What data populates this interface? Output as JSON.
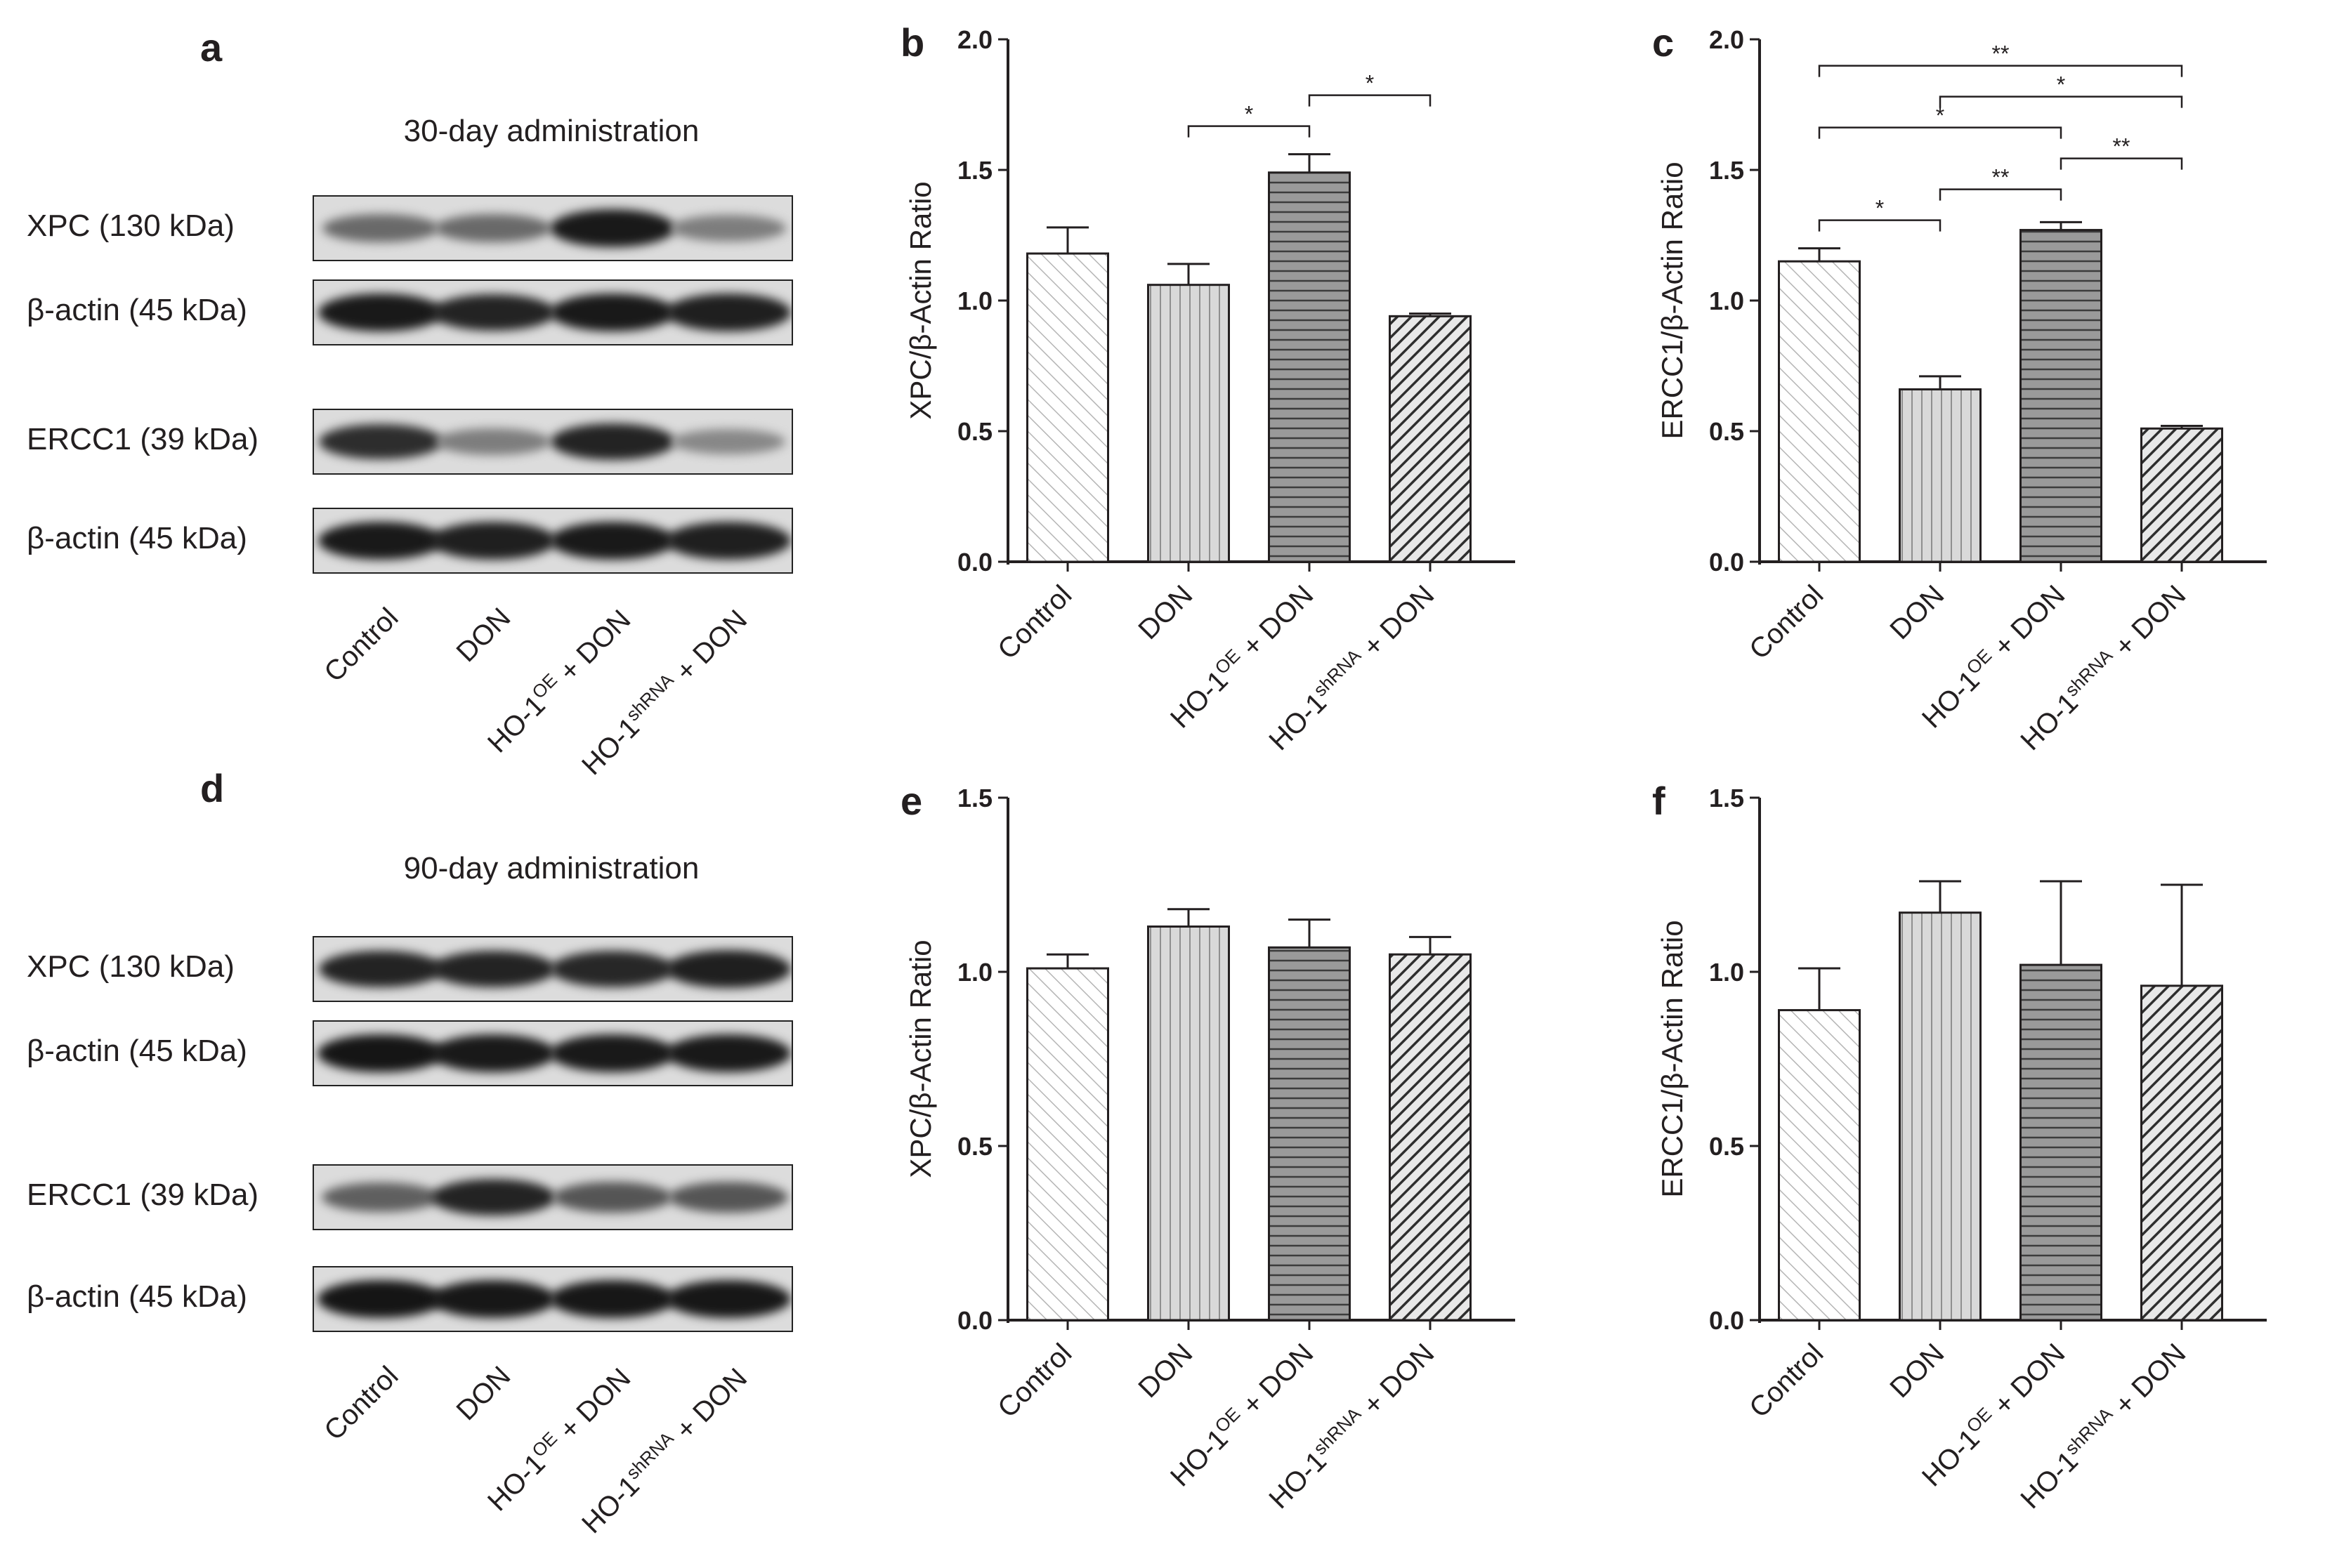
{
  "lane_labels": [
    "Control",
    "DON",
    "HO-1|OE| + DON",
    "HO-1|shRNA| + DON"
  ],
  "blots": [
    {
      "panel": "a",
      "title": "30-day administration",
      "rows": [
        {
          "label": "XPC (130 kDa)",
          "intensities": [
            0.55,
            0.55,
            0.95,
            0.45
          ]
        },
        {
          "label": "β-actin (45 kDa)",
          "intensities": [
            0.95,
            0.9,
            0.95,
            0.92
          ]
        },
        {
          "label": "ERCC1 (39 kDa)",
          "intensities": [
            0.85,
            0.45,
            0.9,
            0.4
          ]
        },
        {
          "label": "β-actin (45 kDa)",
          "intensities": [
            0.95,
            0.92,
            0.95,
            0.92
          ]
        }
      ]
    },
    {
      "panel": "d",
      "title": "90-day administration",
      "rows": [
        {
          "label": "XPC (130 kDa)",
          "intensities": [
            0.9,
            0.9,
            0.88,
            0.92
          ]
        },
        {
          "label": "β-actin (45 kDa)",
          "intensities": [
            0.97,
            0.95,
            0.95,
            0.95
          ]
        },
        {
          "label": "ERCC1 (39 kDa)",
          "intensities": [
            0.6,
            0.9,
            0.65,
            0.65
          ]
        },
        {
          "label": "β-actin (45 kDa)",
          "intensities": [
            0.97,
            0.96,
            0.96,
            0.96
          ]
        }
      ]
    }
  ],
  "chart_data": [
    {
      "panel": "b",
      "type": "bar",
      "categories": [
        "Control",
        "DON",
        "HO-1|OE| + DON",
        "HO-1|shRNA| + DON"
      ],
      "values": [
        1.18,
        1.06,
        1.49,
        0.94
      ],
      "errors": [
        0.1,
        0.08,
        0.07,
        0.01
      ],
      "ylabel": "XPC/β-Actin Ratio",
      "ylim": [
        0,
        2.0
      ],
      "yticks": [
        "0.0",
        "0.5",
        "1.0",
        "1.5",
        "2.0"
      ],
      "significance": [
        {
          "from": 1,
          "to": 2,
          "label": "*"
        },
        {
          "from": 2,
          "to": 3,
          "label": "*"
        }
      ]
    },
    {
      "panel": "c",
      "type": "bar",
      "categories": [
        "Control",
        "DON",
        "HO-1|OE| + DON",
        "HO-1|shRNA| + DON"
      ],
      "values": [
        1.15,
        0.66,
        1.27,
        0.51
      ],
      "errors": [
        0.05,
        0.05,
        0.03,
        0.01
      ],
      "ylabel": "ERCC1/β-Actin Ratio",
      "ylim": [
        0,
        2.0
      ],
      "yticks": [
        "0.0",
        "0.5",
        "1.0",
        "1.5",
        "2.0"
      ],
      "significance": [
        {
          "from": 0,
          "to": 1,
          "label": "*"
        },
        {
          "from": 1,
          "to": 2,
          "label": "**"
        },
        {
          "from": 2,
          "to": 3,
          "label": "**"
        },
        {
          "from": 1,
          "to": 3,
          "label": "*"
        },
        {
          "from": 0,
          "to": 2,
          "label": "*"
        },
        {
          "from": 0,
          "to": 3,
          "label": "**"
        }
      ]
    },
    {
      "panel": "e",
      "type": "bar",
      "categories": [
        "Control",
        "DON",
        "HO-1|OE| + DON",
        "HO-1|shRNA| + DON"
      ],
      "values": [
        1.01,
        1.13,
        1.07,
        1.05
      ],
      "errors": [
        0.04,
        0.05,
        0.08,
        0.05
      ],
      "ylabel": "XPC/β-Actin Ratio",
      "ylim": [
        0,
        1.5
      ],
      "yticks": [
        "0.0",
        "0.5",
        "1.0",
        "1.5"
      ],
      "significance": []
    },
    {
      "panel": "f",
      "type": "bar",
      "categories": [
        "Control",
        "DON",
        "HO-1|OE| + DON",
        "HO-1|shRNA| + DON"
      ],
      "values": [
        0.89,
        1.17,
        1.02,
        0.96
      ],
      "errors": [
        0.12,
        0.09,
        0.24,
        0.29
      ],
      "ylabel": "ERCC1/β-Actin Ratio",
      "ylim": [
        0,
        1.5
      ],
      "yticks": [
        "0.0",
        "0.5",
        "1.0",
        "1.5"
      ],
      "significance": []
    }
  ]
}
